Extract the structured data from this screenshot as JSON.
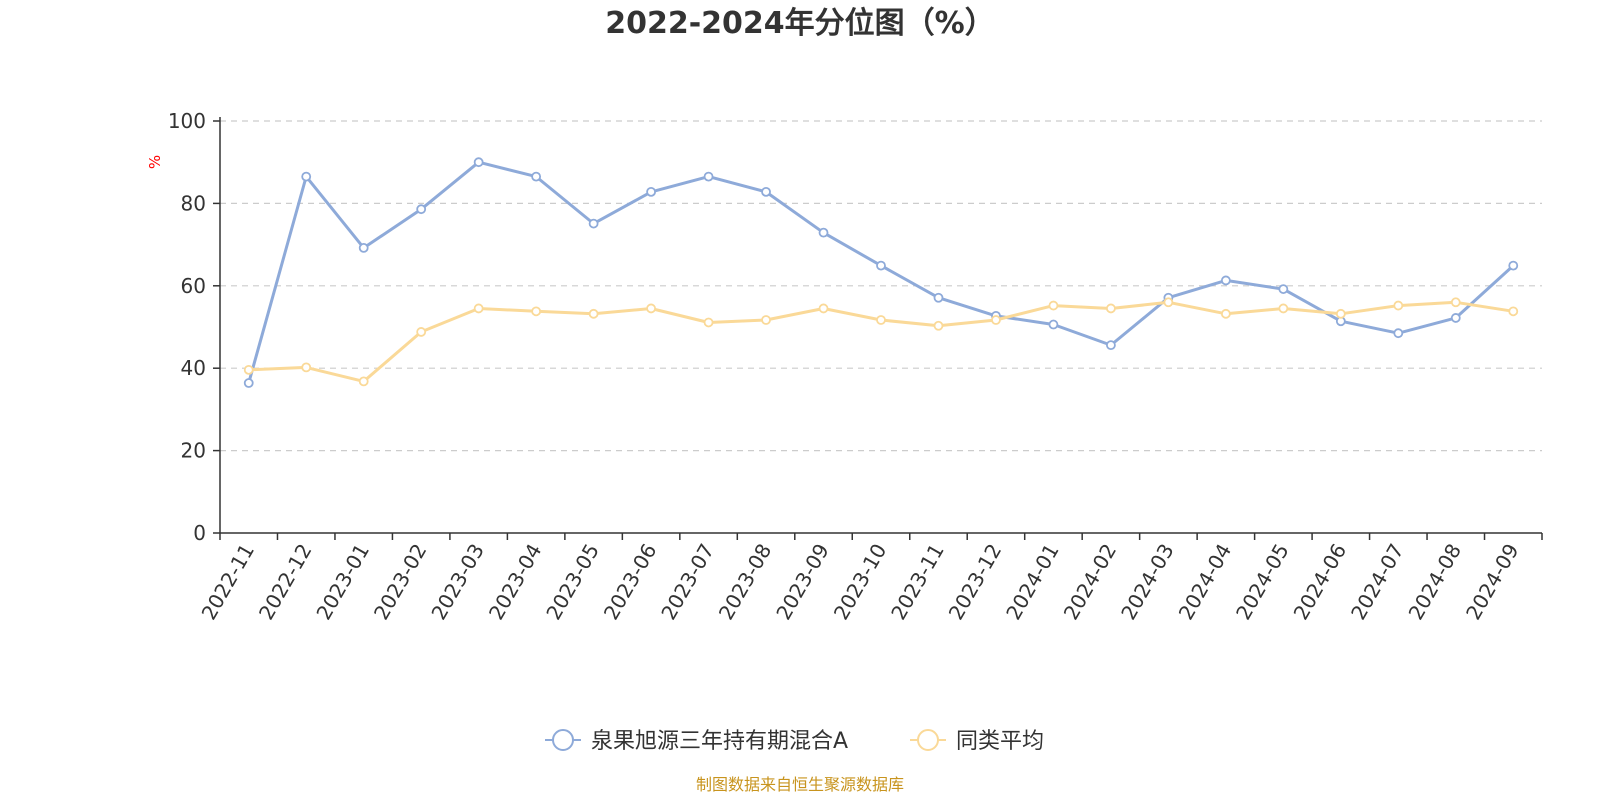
{
  "chart_data": {
    "type": "line",
    "title": "2022-2024年分位图（%）",
    "ylabel": "%",
    "ylim": [
      0,
      100
    ],
    "yticks": [
      "0",
      "20",
      "40",
      "60",
      "80",
      "100"
    ],
    "grid": true,
    "legend_position": "bottom-center",
    "categories": [
      "2022-11",
      "2022-12",
      "2023-01",
      "2023-02",
      "2023-03",
      "2023-04",
      "2023-05",
      "2023-06",
      "2023-07",
      "2023-08",
      "2023-09",
      "2023-10",
      "2023-11",
      "2023-12",
      "2024-01",
      "2024-02",
      "2024-03",
      "2024-04",
      "2024-05",
      "2024-06",
      "2024-07",
      "2024-08",
      "2024-09"
    ],
    "series": [
      {
        "name": "泉果旭源三年持有期混合A",
        "color": "#8eaad9",
        "values": [
          36.4,
          86.5,
          69.2,
          78.6,
          90.0,
          86.5,
          75.1,
          82.8,
          86.5,
          82.8,
          72.9,
          64.9,
          57.1,
          52.7,
          50.6,
          45.6,
          57.1,
          61.3,
          59.2,
          51.4,
          48.5,
          52.2,
          64.9
        ]
      },
      {
        "name": "同类平均",
        "color": "#fad998",
        "values": [
          39.6,
          40.2,
          36.8,
          48.8,
          54.5,
          53.8,
          53.2,
          54.5,
          51.1,
          51.7,
          54.5,
          51.7,
          50.3,
          51.7,
          55.2,
          54.5,
          56.0,
          53.2,
          54.5,
          53.2,
          55.2,
          56.0,
          53.8
        ]
      }
    ]
  },
  "source_text": "制图数据来自恒生聚源数据库",
  "colors": {
    "axis": "#333333",
    "grid": "#cccccc",
    "unit": "#ff0000",
    "source": "#c8941e"
  }
}
